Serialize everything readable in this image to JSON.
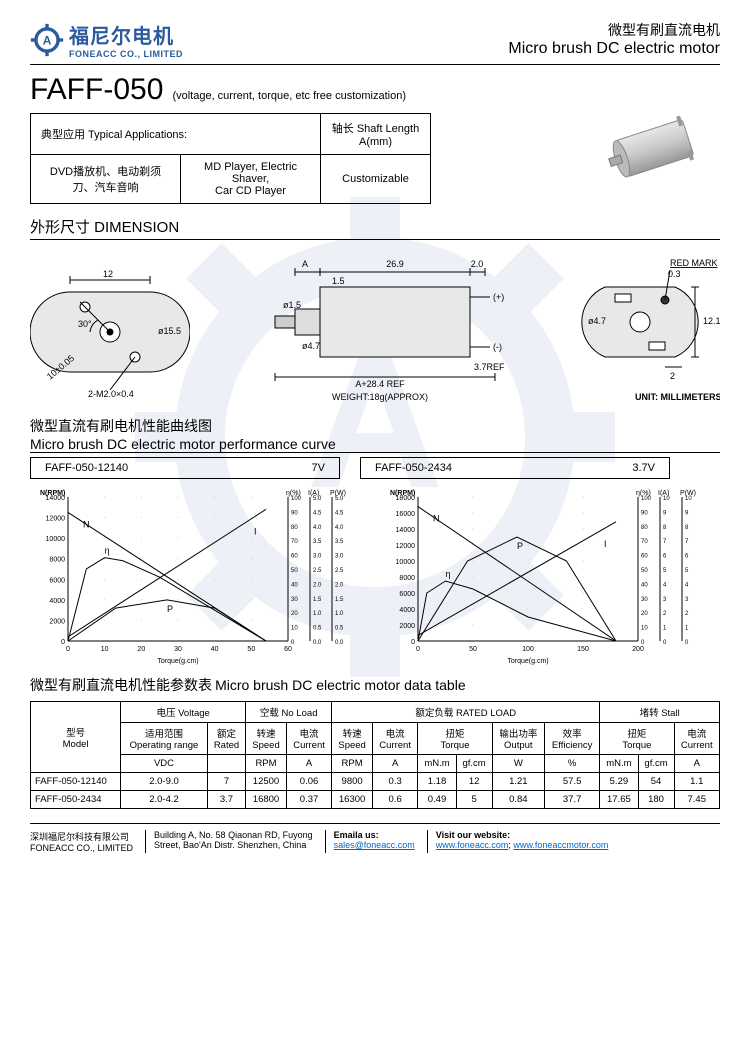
{
  "header": {
    "company_cn": "福尼尔电机",
    "company_en": "FONEACC CO., LIMITED",
    "product_cn": "微型有刷直流电机",
    "product_en": "Micro brush DC electric motor"
  },
  "part": {
    "number": "FAFF-050",
    "subtitle": "(voltage, current, torque, etc free customization)"
  },
  "applications": {
    "header_left": "典型应用 Typical Applications:",
    "header_right": "轴长 Shaft Length A(mm)",
    "cell_cn": "DVD播放机、电动剃须刀、汽车音响",
    "cell_en": "MD Player, Electric Shaver,\nCar CD Player",
    "cell_shaft": "Customizable"
  },
  "dimension": {
    "title": "外形尺寸 DIMENSION",
    "labels": {
      "d12": "12",
      "ang30": "30°",
      "d155": "ø15.5",
      "tol": "10±0.05",
      "hole": "2-M2.0×0.4",
      "A": "A",
      "d15": "ø1.5",
      "d47": "ø4.7",
      "l269": "26.9",
      "l15": "1.5",
      "l20": "2.0",
      "l03": "0.3",
      "red": "RED MARK",
      "plus": "(+)",
      "minus": "(-)",
      "ref37": "3.7REF",
      "aref": "A+28.4 REF",
      "h121": "12.1",
      "w2": "2",
      "weight": "WEIGHT:18g(APPROX)",
      "unit": "UNIT: MILLIMETERS"
    }
  },
  "perf": {
    "title_cn": "微型直流有刷电机性能曲线图",
    "title_en": "Micro brush DC electric motor performance curve",
    "left": {
      "model": "FAFF-050-12140",
      "voltage": "7V"
    },
    "right": {
      "model": "FAFF-050-2434",
      "voltage": "3.7V"
    },
    "axis_left": {
      "ylabel": "N(RPM)",
      "ymax": 14000,
      "ystep": 2000,
      "xlabel": "Torque(g.cm)",
      "xmax": 60,
      "xstep": 10,
      "y2_eta": "η(%)",
      "y2_I": "I(A)",
      "y2_P": "P(W)",
      "eta_max": 100,
      "I_max": 5,
      "P_max": 5
    },
    "axis_right": {
      "ylabel": "N(RPM)",
      "ymax": 18000,
      "ystep": 2000,
      "xlabel": "Torque(g.cm)",
      "xmax": 200,
      "xstep": 50,
      "y2_eta": "η(%)",
      "y2_I": "I(A)",
      "y2_P": "P(W)",
      "eta_max": 100,
      "I_max": 10,
      "P_max": 10
    },
    "curves_left": {
      "N": [
        [
          0,
          12500
        ],
        [
          54,
          0
        ]
      ],
      "I": [
        [
          0,
          400
        ],
        [
          54,
          12800
        ]
      ],
      "eta": [
        [
          0,
          0
        ],
        [
          5,
          7000
        ],
        [
          10,
          8100
        ],
        [
          15,
          7800
        ],
        [
          25,
          6200
        ],
        [
          40,
          3000
        ],
        [
          54,
          0
        ]
      ],
      "P": [
        [
          0,
          0
        ],
        [
          13,
          3200
        ],
        [
          27,
          4000
        ],
        [
          40,
          3200
        ],
        [
          54,
          0
        ]
      ]
    },
    "curves_right": {
      "N": [
        [
          0,
          16800
        ],
        [
          180,
          0
        ]
      ],
      "I": [
        [
          0,
          700
        ],
        [
          180,
          14900
        ]
      ],
      "eta": [
        [
          0,
          0
        ],
        [
          8,
          6000
        ],
        [
          25,
          7500
        ],
        [
          50,
          6500
        ],
        [
          100,
          3000
        ],
        [
          180,
          0
        ]
      ],
      "P": [
        [
          0,
          0
        ],
        [
          45,
          10000
        ],
        [
          90,
          13000
        ],
        [
          135,
          10000
        ],
        [
          180,
          0
        ]
      ]
    },
    "curve_labels": {
      "N": "N",
      "I": "I",
      "P": "P",
      "eta": "η"
    },
    "colors": {
      "line": "#000000",
      "grid": "#bbbbbb",
      "bg": "#ffffff"
    }
  },
  "data_table": {
    "title_cn": "微型有刷直流电机性能参数表",
    "title_en": "Micro brush DC electric motor data table",
    "groups": {
      "model": "型号\nModel",
      "voltage": "电压 Voltage",
      "noload": "空载 No Load",
      "rated": "额定负载 RATED LOAD",
      "stall": "堵转 Stall"
    },
    "sub": {
      "oprange": "适用范围\nOperating range",
      "rated_v": "额定\nRated",
      "speed": "转速\nSpeed",
      "current": "电流\nCurrent",
      "torque": "扭矩\nTorque",
      "output": "输出功率\nOutput",
      "eff": "效率\nEfficiency"
    },
    "units": {
      "vdc": "VDC",
      "rpm": "RPM",
      "a": "A",
      "mnm": "mN.m",
      "gfcm": "gf.cm",
      "w": "W",
      "pct": "%"
    },
    "rows": [
      {
        "model": "FAFF-050-12140",
        "range": "2.0-9.0",
        "rated": "7",
        "nl_rpm": "12500",
        "nl_a": "0.06",
        "rl_rpm": "9800",
        "rl_a": "0.3",
        "t_mnm": "1.18",
        "t_gf": "12",
        "out_w": "1.21",
        "eff": "57.5",
        "st_mnm": "5.29",
        "st_gf": "54",
        "st_a": "1.1"
      },
      {
        "model": "FAFF-050-2434",
        "range": "2.0-4.2",
        "rated": "3.7",
        "nl_rpm": "16800",
        "nl_a": "0.37",
        "rl_rpm": "16300",
        "rl_a": "0.6",
        "t_mnm": "0.49",
        "t_gf": "5",
        "out_w": "0.84",
        "eff": "37.7",
        "st_mnm": "17.65",
        "st_gf": "180",
        "st_a": "7.45"
      }
    ]
  },
  "footer": {
    "company_cn": "深圳福尼尔科技有限公司",
    "company_en": "FONEACC CO., LIMITED",
    "address": "Building A, No. 58 Qiaonan RD, Fuyong\nStreet, Bao'An Distr. Shenzhen, China",
    "email_label": "Emaila us:",
    "email": "sales@foneacc.com",
    "website_label": "Visit our website:",
    "website1": "www.foneacc.com",
    "website2": "www.foneaccmotor.com"
  }
}
